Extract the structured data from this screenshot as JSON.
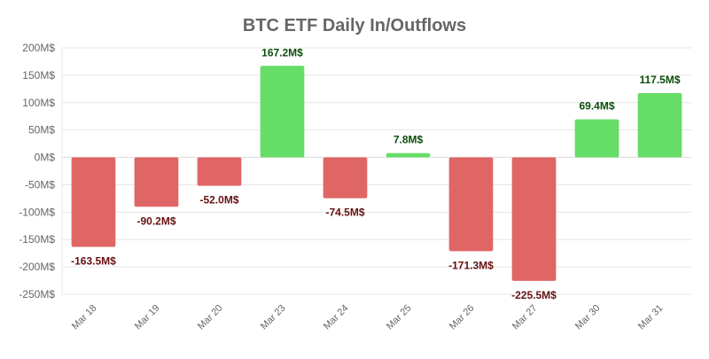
{
  "chart_data": {
    "type": "bar",
    "title": "BTC ETF Daily In/Outflows",
    "xlabel": "",
    "ylabel": "",
    "categories": [
      "Mar 18",
      "Mar 19",
      "Mar 20",
      "Mar 23",
      "Mar 24",
      "Mar 25",
      "Mar 26",
      "Mar 27",
      "Mar 30",
      "Mar 31"
    ],
    "values": [
      -163.5,
      -90.2,
      -52.0,
      167.2,
      -74.5,
      7.8,
      -171.3,
      -225.5,
      69.4,
      117.5
    ],
    "data_labels": [
      "-163.5M$",
      "-90.2M$",
      "-52.0M$",
      "167.2M$",
      "-74.5M$",
      "7.8M$",
      "-171.3M$",
      "-225.5M$",
      "69.4M$",
      "117.5M$"
    ],
    "ylim": [
      -250,
      200
    ],
    "yticks": [
      200,
      150,
      100,
      50,
      0,
      -50,
      -100,
      -150,
      -200,
      -250
    ],
    "ytick_labels": [
      "200M$",
      "150M$",
      "100M$",
      "50M$",
      "0M$",
      "-50M$",
      "-100M$",
      "-150M$",
      "-200M$",
      "-250M$"
    ],
    "grid": true,
    "legend": "none",
    "colors": {
      "positive_bar": "#66DD66",
      "negative_bar": "#E06666",
      "positive_label": "#0B4D0B",
      "negative_label": "#661111",
      "grid": "#E6E6E6",
      "tick_label": "#666666"
    }
  }
}
